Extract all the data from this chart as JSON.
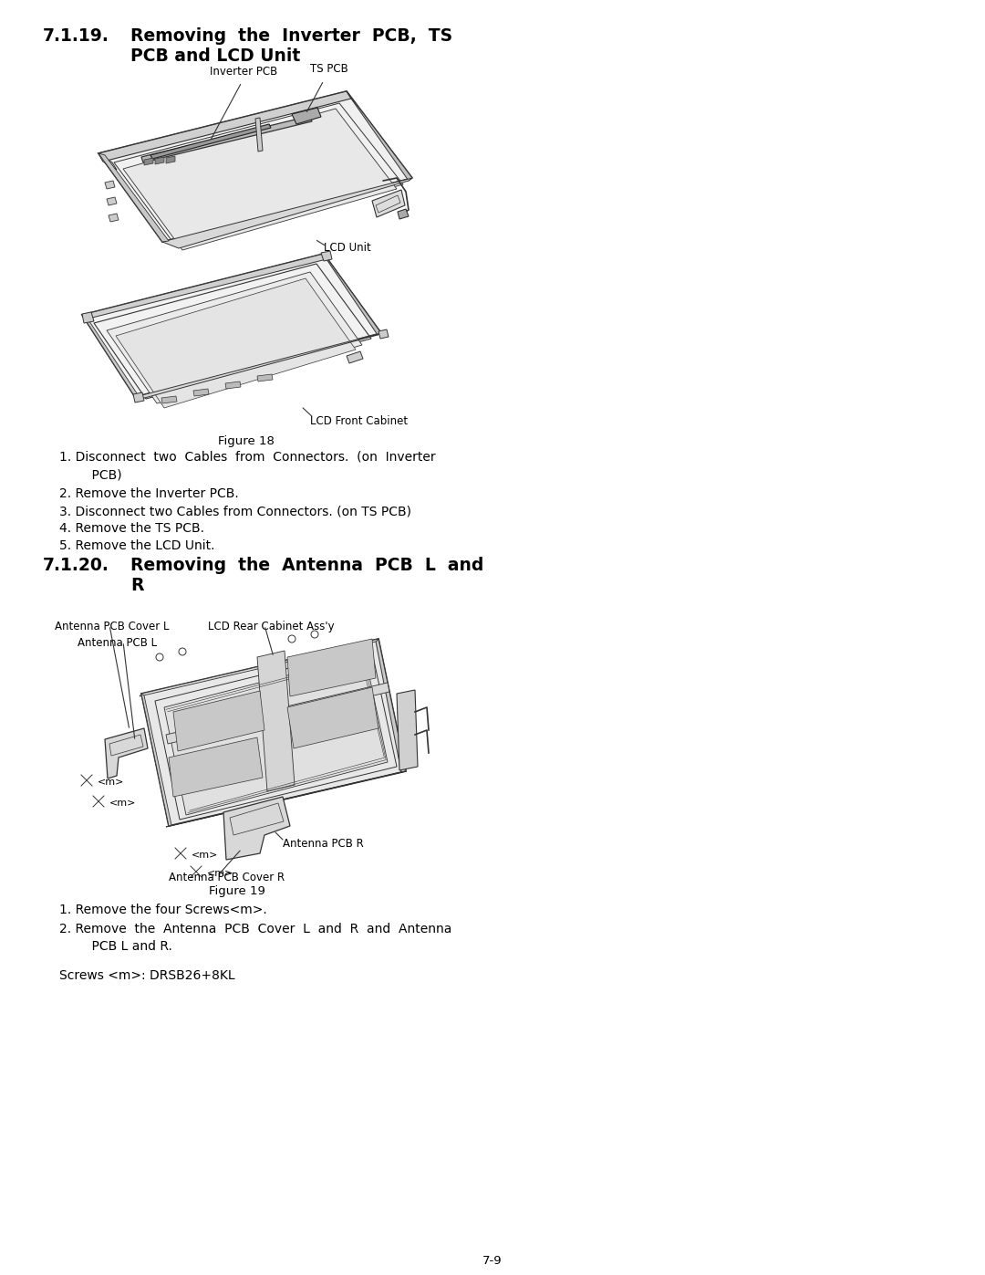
{
  "background_color": "#ffffff",
  "text_color": "#000000",
  "draw_color": "#333333",
  "page_number": "7-9",
  "title1_num": "7.1.19.",
  "title1_text1": "Removing  the  Inverter  PCB,  TS",
  "title1_text2": "PCB and LCD Unit",
  "title2_num": "7.1.20.",
  "title2_text1": "Removing  the  Antenna  PCB  L  and",
  "title2_text2": "R",
  "fig18_caption": "Figure 18",
  "fig19_caption": "Figure 19",
  "label_inverter_pcb": "Inverter PCB",
  "label_ts_pcb": "TS PCB",
  "label_lcd_unit": "LCD Unit",
  "label_lcd_front": "LCD Front Cabinet",
  "label_ant_cover_l": "Antenna PCB Cover L",
  "label_ant_pcb_l": "Antenna PCB L",
  "label_lcd_rear": "LCD Rear Cabinet Ass'y",
  "label_ant_pcb_r": "Antenna PCB R",
  "label_ant_cover_r": "Antenna PCB Cover R",
  "sec1_items": [
    "1. Disconnect  two  Cables  from  Connectors.  (on  Inverter",
    "    PCB)",
    "2. Remove the Inverter PCB.",
    "3. Disconnect two Cables from Connectors. (on TS PCB)",
    "4. Remove the TS PCB.",
    "5. Remove the LCD Unit."
  ],
  "sec2_items": [
    "1. Remove the four Screws<m>.",
    "2. Remove  the  Antenna  PCB  Cover  L  and  R  and  Antenna",
    "    PCB L and R."
  ],
  "screws_note": "Screws <m>: DRSB26+8KL"
}
